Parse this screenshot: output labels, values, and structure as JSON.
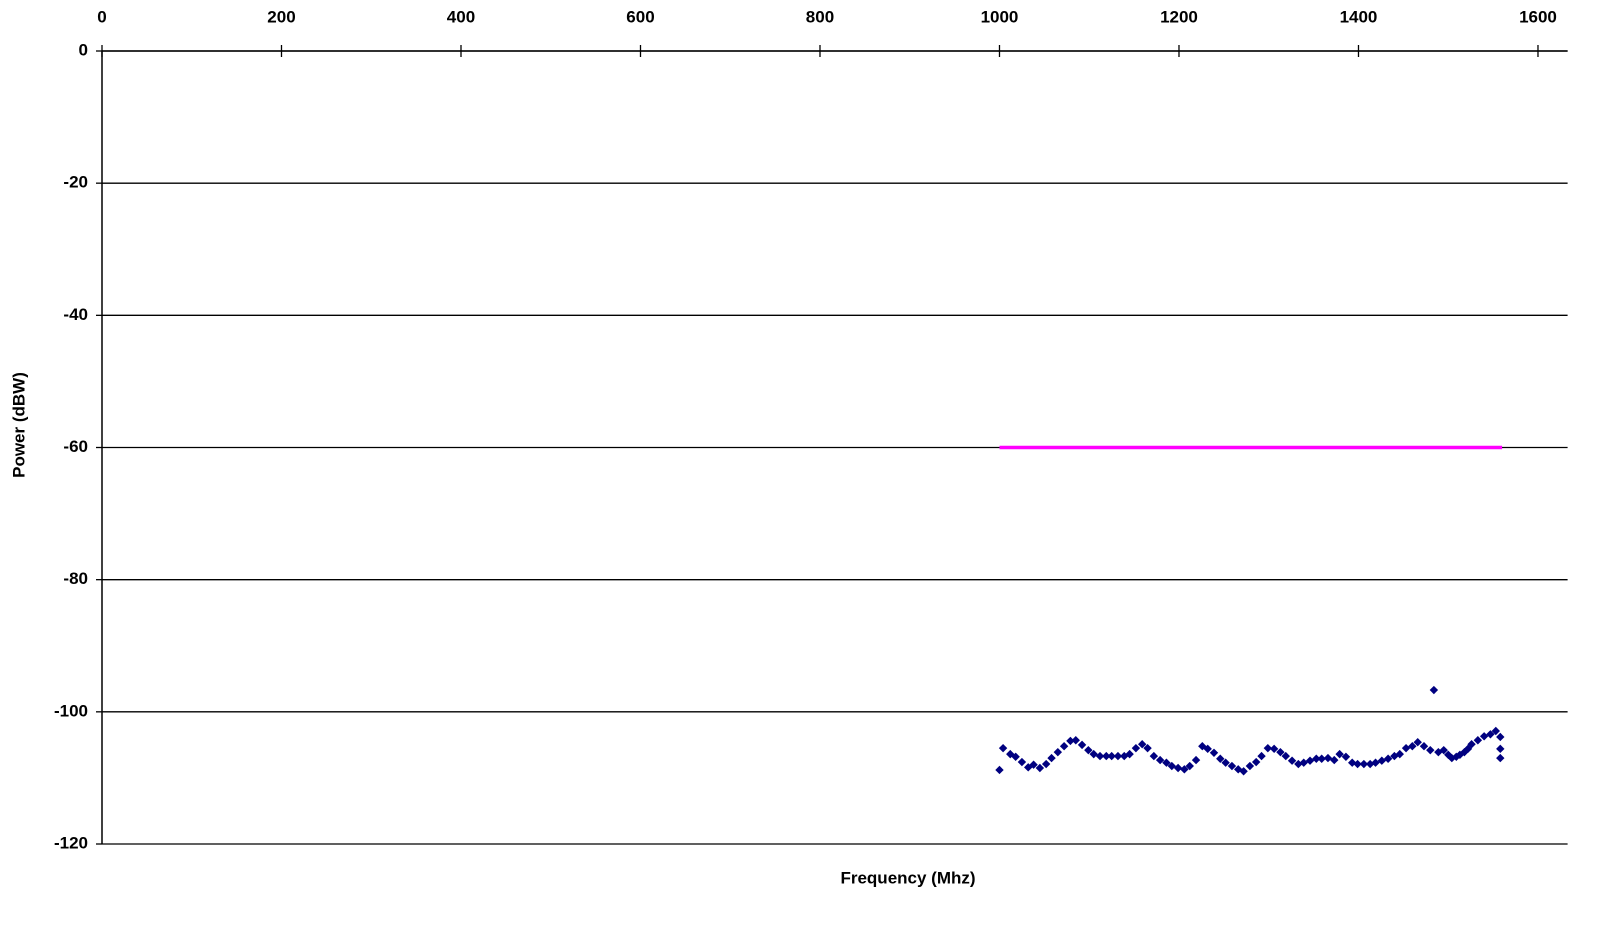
{
  "chart_data": {
    "type": "scatter",
    "x_label": "Frequency (Mhz)",
    "y_label": "Power (dBW)",
    "xlim": [
      0,
      1633
    ],
    "ylim": [
      -120,
      0
    ],
    "xticks": [
      0,
      200,
      400,
      600,
      800,
      1000,
      1200,
      1400,
      1600
    ],
    "yticks": [
      -120,
      -100,
      -80,
      -60,
      -40,
      -20,
      0
    ],
    "grid": true,
    "x_axis_position": "top",
    "series": [
      {
        "style": "line",
        "color": "#ff00ff",
        "x": [
          1000,
          1560
        ],
        "values": [
          -60,
          -60
        ]
      },
      {
        "style": "markers",
        "color": "#000080",
        "x": [
          1000,
          1004,
          1012,
          1018,
          1025,
          1032,
          1038,
          1045,
          1052,
          1058,
          1065,
          1072,
          1079,
          1085,
          1092,
          1099,
          1105,
          1112,
          1119,
          1125,
          1132,
          1139,
          1145,
          1152,
          1159,
          1165,
          1172,
          1179,
          1186,
          1192,
          1199,
          1206,
          1212,
          1219,
          1226,
          1232,
          1239,
          1246,
          1252,
          1259,
          1266,
          1272,
          1279,
          1286,
          1292,
          1299,
          1306,
          1313,
          1319,
          1326,
          1333,
          1339,
          1346,
          1353,
          1359,
          1366,
          1373,
          1379,
          1386,
          1393,
          1399,
          1406,
          1413,
          1419,
          1426,
          1433,
          1440,
          1446,
          1453,
          1460,
          1466,
          1473,
          1480,
          1484,
          1489,
          1495,
          1500,
          1504,
          1509,
          1513,
          1518,
          1522,
          1526,
          1533,
          1540,
          1547,
          1553,
          1558,
          1558,
          1558
        ],
        "values": [
          -108.8,
          -105.5,
          -106.4,
          -106.8,
          -107.6,
          -108.4,
          -108.0,
          -108.5,
          -107.9,
          -107.0,
          -106.1,
          -105.2,
          -104.4,
          -104.3,
          -105.0,
          -105.8,
          -106.4,
          -106.7,
          -106.7,
          -106.7,
          -106.7,
          -106.7,
          -106.4,
          -105.5,
          -104.9,
          -105.5,
          -106.7,
          -107.3,
          -107.7,
          -108.2,
          -108.5,
          -108.7,
          -108.2,
          -107.3,
          -105.2,
          -105.6,
          -106.2,
          -107.1,
          -107.7,
          -108.2,
          -108.7,
          -109.0,
          -108.2,
          -107.6,
          -106.7,
          -105.5,
          -105.6,
          -106.1,
          -106.7,
          -107.4,
          -107.9,
          -107.7,
          -107.4,
          -107.1,
          -107.1,
          -107.0,
          -107.3,
          -106.4,
          -106.8,
          -107.7,
          -107.9,
          -107.9,
          -107.9,
          -107.7,
          -107.4,
          -107.1,
          -106.7,
          -106.4,
          -105.5,
          -105.2,
          -104.6,
          -105.2,
          -105.8,
          -96.7,
          -106.1,
          -105.8,
          -106.5,
          -107.0,
          -106.8,
          -106.5,
          -106.1,
          -105.6,
          -104.9,
          -104.3,
          -103.7,
          -103.4,
          -102.9,
          -103.8,
          -105.6,
          -107.0
        ]
      }
    ]
  }
}
